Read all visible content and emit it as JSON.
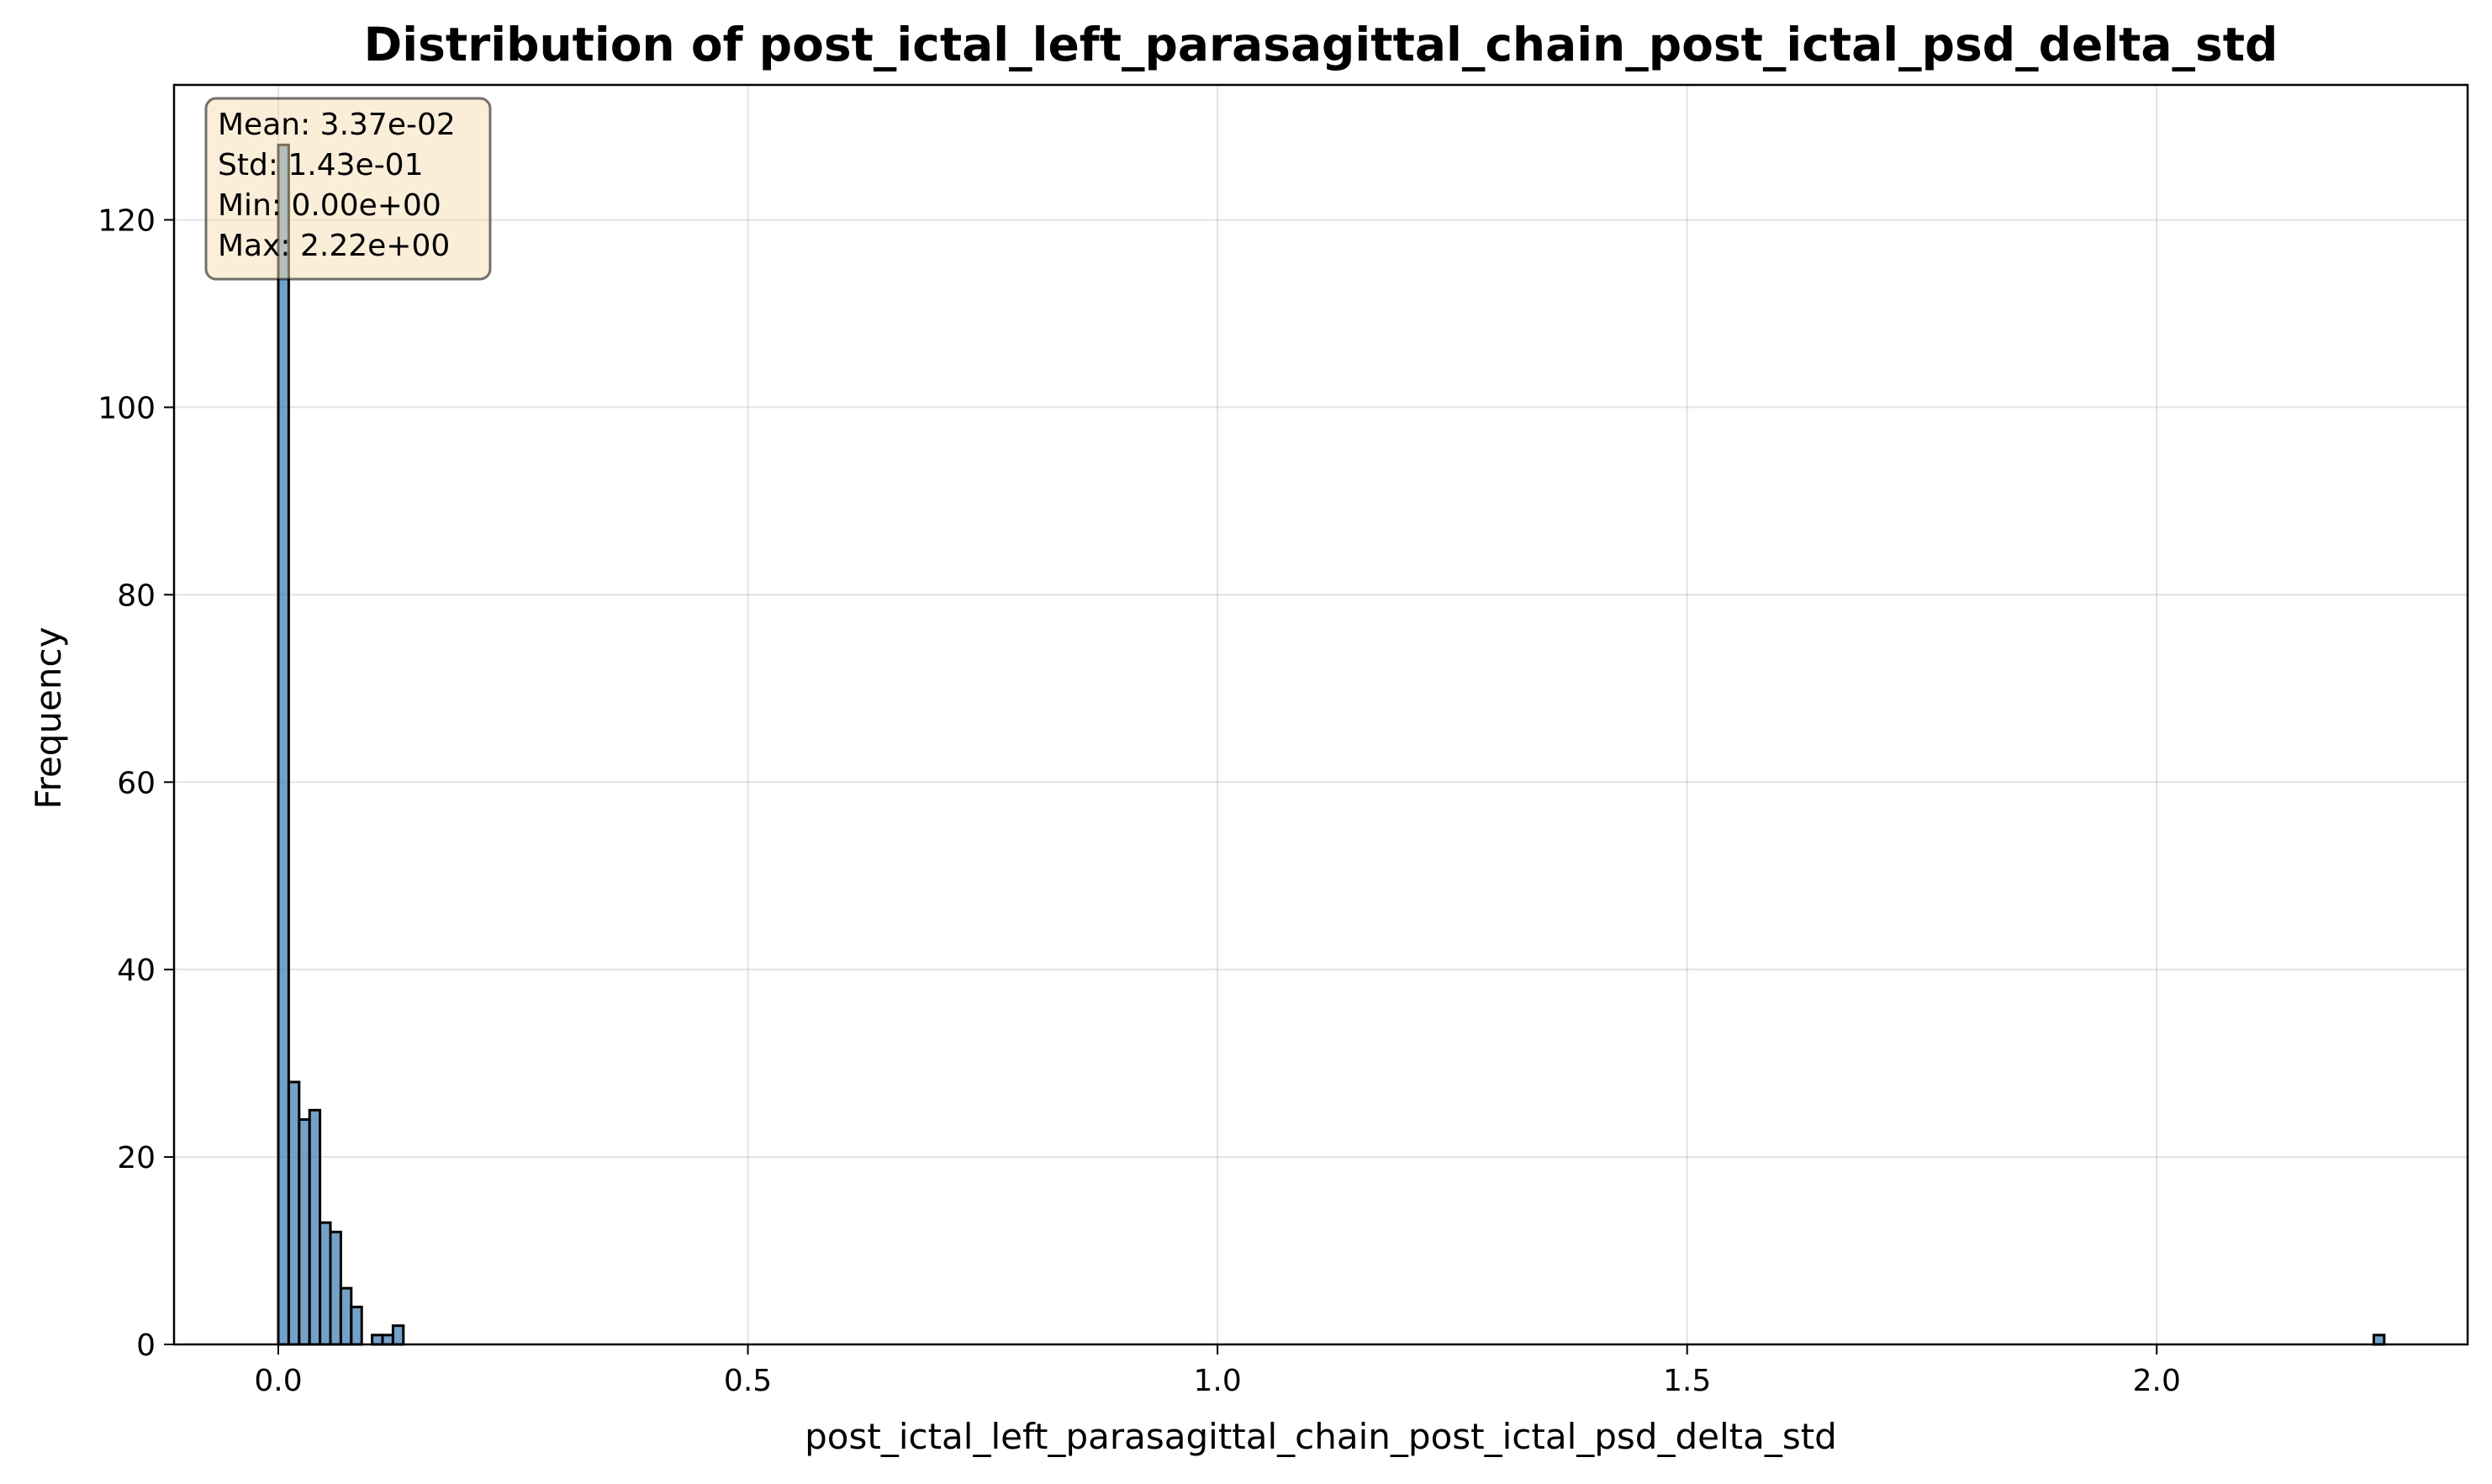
{
  "chart_data": {
    "type": "bar",
    "title": "Distribution of post_ictal_left_parasagittal_chain_post_ictal_psd_delta_std",
    "xlabel": "post_ictal_left_parasagittal_chain_post_ictal_psd_delta_std",
    "ylabel": "Frequency",
    "xlim": [
      -0.111,
      2.331
    ],
    "ylim": [
      0,
      134.4
    ],
    "grid": true,
    "bar_color": "#4682b4",
    "bar_edge_color": "#000000",
    "x_ticks": [
      {
        "value": 0.0,
        "label": "0.0"
      },
      {
        "value": 0.5,
        "label": "0.5"
      },
      {
        "value": 1.0,
        "label": "1.0"
      },
      {
        "value": 1.5,
        "label": "1.5"
      },
      {
        "value": 2.0,
        "label": "2.0"
      }
    ],
    "y_ticks": [
      {
        "value": 0,
        "label": "0"
      },
      {
        "value": 20,
        "label": "20"
      },
      {
        "value": 40,
        "label": "40"
      },
      {
        "value": 60,
        "label": "60"
      },
      {
        "value": 80,
        "label": "80"
      },
      {
        "value": 100,
        "label": "100"
      },
      {
        "value": 120,
        "label": "120"
      }
    ],
    "bins": {
      "start": 0.0,
      "width": 0.0111,
      "counts": [
        128,
        28,
        24,
        25,
        13,
        12,
        6,
        4,
        0,
        1,
        1,
        2,
        0,
        0,
        0,
        0,
        0,
        0,
        0,
        0,
        0,
        0,
        0,
        0,
        0,
        0,
        0,
        0,
        0,
        0,
        0,
        0,
        0,
        0,
        0,
        0,
        0,
        0,
        0,
        0,
        0,
        0,
        0,
        0,
        0,
        0,
        0,
        0,
        0,
        0,
        0,
        0,
        0,
        0,
        0,
        0,
        0,
        0,
        0,
        0,
        0,
        0,
        0,
        0,
        0,
        0,
        0,
        0,
        0,
        0,
        0,
        0,
        0,
        0,
        0,
        0,
        0,
        0,
        0,
        0,
        0,
        0,
        0,
        0,
        0,
        0,
        0,
        0,
        0,
        0,
        0,
        0,
        0,
        0,
        0,
        0,
        0,
        0,
        0,
        0,
        0,
        0,
        0,
        0,
        0,
        0,
        0,
        0,
        0,
        0,
        0,
        0,
        0,
        0,
        0,
        0,
        0,
        0,
        0,
        0,
        0,
        0,
        0,
        0,
        0,
        0,
        0,
        0,
        0,
        0,
        0,
        0,
        0,
        0,
        0,
        0,
        0,
        0,
        0,
        0,
        0,
        0,
        0,
        0,
        0,
        0,
        0,
        0,
        0,
        0,
        0,
        0,
        0,
        0,
        0,
        0,
        0,
        0,
        0,
        0,
        0,
        0,
        0,
        0,
        0,
        0,
        0,
        0,
        0,
        0,
        0,
        0,
        0,
        0,
        0,
        0,
        0,
        0,
        0,
        0,
        0,
        0,
        0,
        0,
        0,
        0,
        0,
        0,
        0,
        0,
        0,
        0,
        0,
        0,
        0,
        0,
        0,
        0,
        0,
        0,
        0,
        1
      ]
    },
    "stats": {
      "lines": [
        "Mean: 3.37e-02",
        "Std: 1.43e-01",
        "Min: 0.00e+00",
        "Max: 2.22e+00"
      ],
      "box_fill": "#f5deb3",
      "box_edge": "#000000"
    }
  }
}
